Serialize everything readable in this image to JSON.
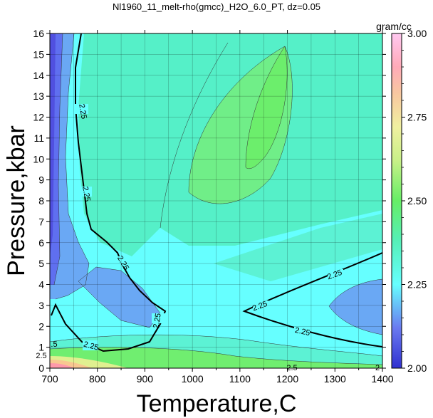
{
  "chart_data": {
    "type": "heatmap",
    "title": "Nl1960_11_melt-rho(gmcc)_H2O_6.0_PT, dz=0.05",
    "xlabel": "Temperature,C",
    "ylabel": "Pressure,kbar",
    "xlim": [
      700,
      1400
    ],
    "ylim": [
      0,
      16
    ],
    "x_ticks": [
      "700",
      "800",
      "900",
      "1000",
      "1100",
      "1200",
      "1300",
      "1400"
    ],
    "y_ticks": [
      "0",
      "1",
      "2",
      "3",
      "4",
      "5",
      "6",
      "7",
      "8",
      "9",
      "10",
      "11",
      "12",
      "13",
      "14",
      "15",
      "16"
    ],
    "grid": true,
    "colorbar": {
      "label": "gram/cc",
      "range": [
        2.0,
        3.0
      ],
      "ticks": [
        "2.00",
        "2.25",
        "2.50",
        "2.75",
        "3.00"
      ]
    },
    "contour_labels": [
      "2.25",
      "2.25",
      "2.25",
      "2.25",
      "2.25",
      "2.25",
      "2.25",
      "2.25",
      "2.5",
      ".5",
      "2.5",
      "2"
    ],
    "colors": {
      "low": "#6666ee",
      "cyan": "#66ffff",
      "teal": "#55f0c8",
      "green": "#70ee70",
      "high": "#ff99cc"
    }
  }
}
